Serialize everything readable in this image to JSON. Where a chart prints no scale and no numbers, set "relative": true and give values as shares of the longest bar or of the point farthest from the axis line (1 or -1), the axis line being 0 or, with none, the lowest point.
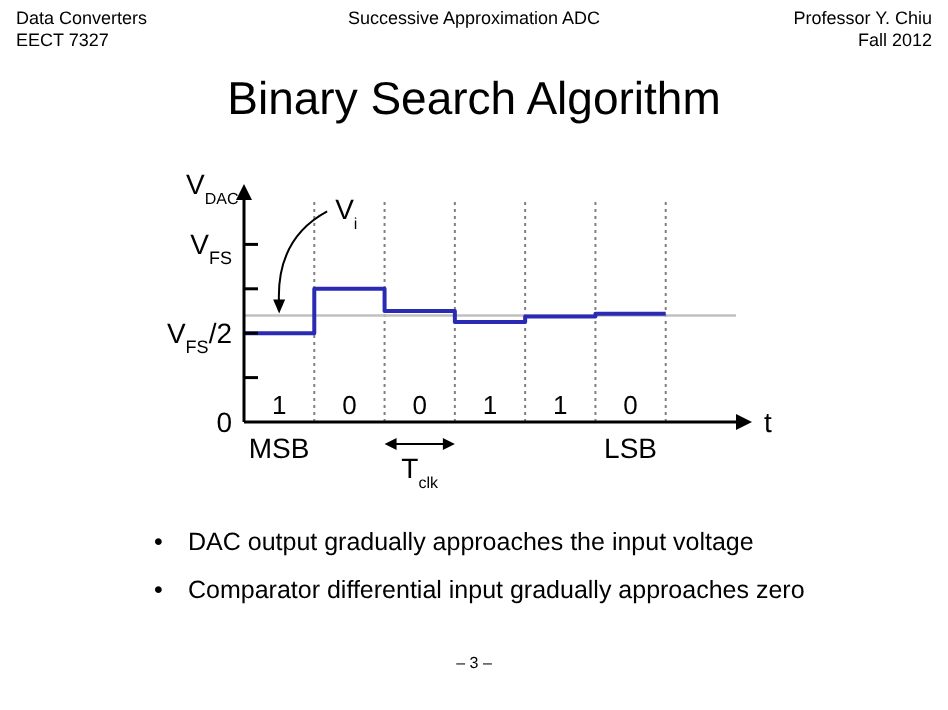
{
  "chart_data": {
    "type": "step",
    "title": "Binary Search Algorithm",
    "xlabel": "t",
    "ylabel": "V$_{DAC}$",
    "relative": true,
    "categories": [
      null,
      null,
      null,
      null,
      null,
      null,
      null
    ],
    "series": [
      {
        "color": "#2a2ab4",
        "values": [
          0.6667,
          1,
          0.8333,
          0.75,
          0.7917,
          0.8125,
          0.8125
        ]
      }
    ],
    "grid": "x",
    "legend": false,
    "marker": "none",
    "line_style": "solid",
    "ref_lines": [
      {
        "axis": "y",
        "value": 0.8,
        "label": "V$_{i}$",
        "color": "#c0c0c0"
      }
    ],
    "annotations": [
      "Data Converters",
      "EECT 7327",
      "Successive Approximation ADC",
      "Professor Y. Chiu",
      "Fall 2012",
      "1",
      "0",
      "0",
      "1",
      "1",
      "0",
      "MSB",
      "LSB",
      "T$_{clk}$",
      "• DAC output gradually approaches the input voltage",
      "• Comparator differential input gradually approaches zero",
      "– 3 –",
      "0",
      "V$_{FS}$/2",
      "V$_{FS}$"
    ]
  }
}
